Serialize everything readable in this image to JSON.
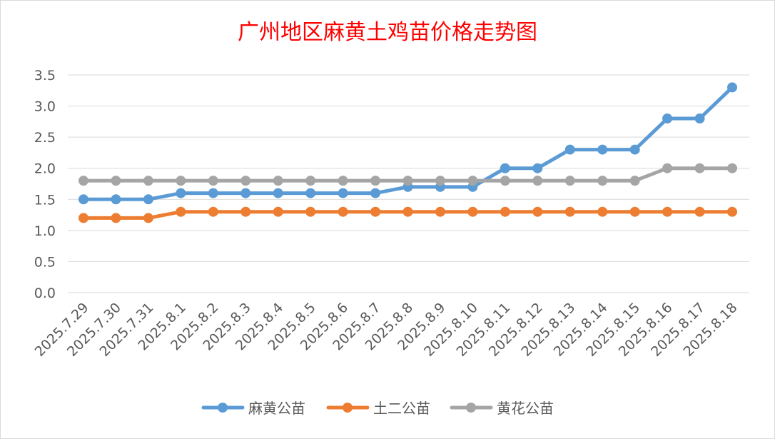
{
  "chart_data": {
    "type": "line",
    "title": "广州地区麻黄土鸡苗价格走势图",
    "categories": [
      "2025.7.29",
      "2025.7.30",
      "2025.7.31",
      "2025.8.1",
      "2025.8.2",
      "2025.8.3",
      "2025.8.4",
      "2025.8.5",
      "2025.8.6",
      "2025.8.7",
      "2025.8.8",
      "2025.8.9",
      "2025.8.10",
      "2025.8.11",
      "2025.8.12",
      "2025.8.13",
      "2025.8.14",
      "2025.8.15",
      "2025.8.16",
      "2025.8.17",
      "2025.8.18"
    ],
    "series": [
      {
        "name": "麻黄公苗",
        "color": "#5b9bd5",
        "values": [
          1.5,
          1.5,
          1.5,
          1.6,
          1.6,
          1.6,
          1.6,
          1.6,
          1.6,
          1.6,
          1.7,
          1.7,
          1.7,
          2.0,
          2.0,
          2.3,
          2.3,
          2.3,
          2.8,
          2.8,
          3.3
        ]
      },
      {
        "name": "土二公苗",
        "color": "#ed7d31",
        "values": [
          1.2,
          1.2,
          1.2,
          1.3,
          1.3,
          1.3,
          1.3,
          1.3,
          1.3,
          1.3,
          1.3,
          1.3,
          1.3,
          1.3,
          1.3,
          1.3,
          1.3,
          1.3,
          1.3,
          1.3,
          1.3
        ]
      },
      {
        "name": "黄花公苗",
        "color": "#a5a5a5",
        "values": [
          1.8,
          1.8,
          1.8,
          1.8,
          1.8,
          1.8,
          1.8,
          1.8,
          1.8,
          1.8,
          1.8,
          1.8,
          1.8,
          1.8,
          1.8,
          1.8,
          1.8,
          1.8,
          2.0,
          2.0,
          2.0
        ]
      }
    ],
    "yticks": [
      "0.0",
      "0.5",
      "1.0",
      "1.5",
      "2.0",
      "2.5",
      "3.0",
      "3.5"
    ],
    "ylim": [
      0,
      3.5
    ],
    "grid": true,
    "legend": "bottom"
  }
}
